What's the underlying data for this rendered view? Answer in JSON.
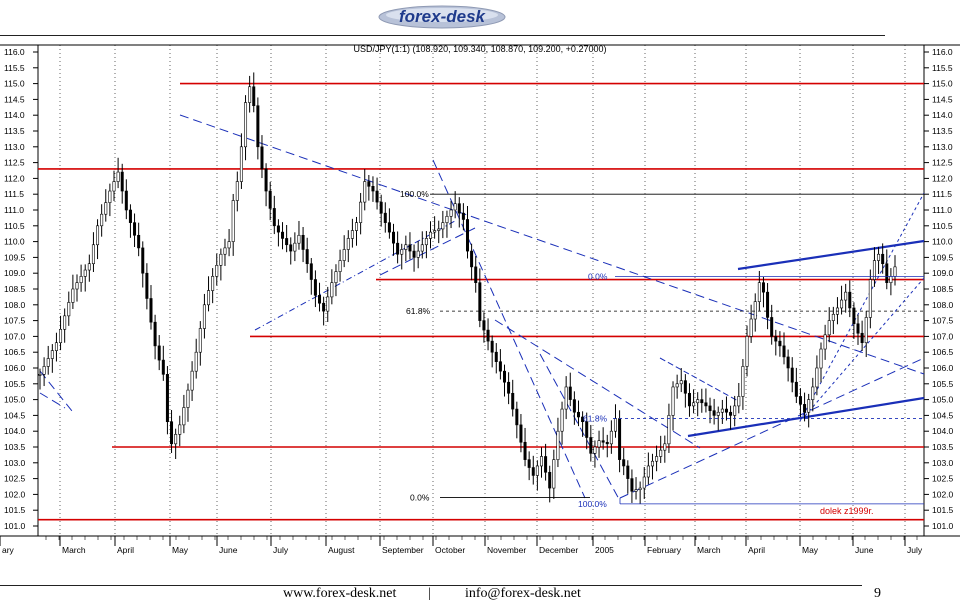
{
  "header": {
    "logo_text": "forex-desk"
  },
  "footer": {
    "website": "www.forex-desk.net",
    "separator": "|",
    "email": "info@forex-desk.net",
    "page_number": "9"
  },
  "chart_data": {
    "type": "candlestick",
    "title": "USD/JPY(1:1) (108.920, 109.340, 108.870, 109.200, +0.27000)",
    "xlabel": "",
    "ylabel": "",
    "ylim": [
      100.6,
      116.2
    ],
    "y_ticks": [
      "116.0",
      "115.5",
      "115.0",
      "114.5",
      "114.0",
      "113.5",
      "113.0",
      "112.5",
      "112.0",
      "111.5",
      "111.0",
      "110.5",
      "110.0",
      "109.5",
      "109.0",
      "108.5",
      "108.0",
      "107.5",
      "107.0",
      "106.5",
      "106.0",
      "105.5",
      "105.0",
      "104.5",
      "104.0",
      "103.5",
      "103.0",
      "102.5",
      "102.0",
      "101.5",
      "101.0"
    ],
    "x_ticks": [
      "ary",
      "March",
      "April",
      "May",
      "June",
      "July",
      "August",
      "September",
      "October",
      "November",
      "December",
      "2005",
      "February",
      "March",
      "April",
      "May",
      "June",
      "July"
    ],
    "grid": true,
    "colors": {
      "horizontal_level": "#d40000",
      "trendline": "#1a2fb8",
      "fib": "#000000",
      "price": "#000000"
    },
    "horizontal_levels": [
      115.0,
      112.3,
      108.8,
      107.0,
      103.5,
      101.2
    ],
    "fibonacci": [
      {
        "label": "100.0%",
        "value": 111.5
      },
      {
        "label": "61.8%",
        "value": 107.8
      },
      {
        "label": "0.0%",
        "value": 101.9
      },
      {
        "label": "0.0%",
        "value": 108.9
      },
      {
        "label": "61.8%",
        "value": 104.4
      },
      {
        "label": "100.0%",
        "value": 101.7
      }
    ],
    "annotations": [
      "dolek z1999r."
    ],
    "close_path": [
      [
        0,
        105.8
      ],
      [
        4,
        106.8
      ],
      [
        8,
        108.5
      ],
      [
        12,
        109.3
      ],
      [
        14,
        110.5
      ],
      [
        17,
        111.6
      ],
      [
        19,
        112.2
      ],
      [
        21,
        111.0
      ],
      [
        24,
        109.8
      ],
      [
        26,
        108.2
      ],
      [
        28,
        106.7
      ],
      [
        30,
        105.8
      ],
      [
        31,
        104.3
      ],
      [
        32,
        103.6
      ],
      [
        34,
        104.2
      ],
      [
        36,
        105.3
      ],
      [
        38,
        106.5
      ],
      [
        40,
        108.0
      ],
      [
        42,
        108.9
      ],
      [
        44,
        109.6
      ],
      [
        46,
        110.0
      ],
      [
        47,
        111.3
      ],
      [
        48,
        111.9
      ],
      [
        49,
        113.0
      ],
      [
        50,
        114.4
      ],
      [
        51,
        114.9
      ],
      [
        52,
        114.3
      ],
      [
        53,
        113.0
      ],
      [
        55,
        111.6
      ],
      [
        57,
        110.5
      ],
      [
        59,
        110.1
      ],
      [
        61,
        109.7
      ],
      [
        63,
        110.2
      ],
      [
        65,
        109.3
      ],
      [
        67,
        108.3
      ],
      [
        69,
        107.8
      ],
      [
        71,
        108.7
      ],
      [
        73,
        109.4
      ],
      [
        75,
        110.1
      ],
      [
        77,
        110.6
      ],
      [
        79,
        111.9
      ],
      [
        81,
        111.6
      ],
      [
        83,
        110.9
      ],
      [
        85,
        110.3
      ],
      [
        87,
        109.6
      ],
      [
        89,
        109.9
      ],
      [
        91,
        109.5
      ],
      [
        93,
        109.9
      ],
      [
        95,
        110.3
      ],
      [
        97,
        110.4
      ],
      [
        99,
        110.8
      ],
      [
        101,
        111.2
      ],
      [
        102,
        110.9
      ],
      [
        103,
        110.7
      ],
      [
        104,
        109.7
      ],
      [
        106,
        108.7
      ],
      [
        107,
        107.5
      ],
      [
        108,
        107.2
      ],
      [
        110,
        106.5
      ],
      [
        112,
        105.9
      ],
      [
        114,
        105.2
      ],
      [
        116,
        104.2
      ],
      [
        118,
        103.1
      ],
      [
        120,
        102.6
      ],
      [
        122,
        103.2
      ],
      [
        124,
        102.2
      ],
      [
        126,
        104.0
      ],
      [
        128,
        105.4
      ],
      [
        130,
        104.6
      ],
      [
        132,
        104.3
      ],
      [
        134,
        103.3
      ],
      [
        136,
        103.7
      ],
      [
        138,
        103.6
      ],
      [
        140,
        104.4
      ],
      [
        141,
        103.1
      ],
      [
        142,
        102.9
      ],
      [
        144,
        102.1
      ],
      [
        146,
        102.2
      ],
      [
        148,
        102.9
      ],
      [
        150,
        103.2
      ],
      [
        152,
        103.6
      ],
      [
        154,
        105.4
      ],
      [
        156,
        105.6
      ],
      [
        158,
        104.8
      ],
      [
        160,
        105.0
      ],
      [
        162,
        104.8
      ],
      [
        164,
        104.5
      ],
      [
        166,
        104.7
      ],
      [
        168,
        104.5
      ],
      [
        170,
        105.1
      ],
      [
        172,
        107.0
      ],
      [
        174,
        108.1
      ],
      [
        175,
        108.7
      ],
      [
        176,
        108.4
      ],
      [
        177,
        107.6
      ],
      [
        178,
        107.0
      ],
      [
        180,
        106.7
      ],
      [
        182,
        106.0
      ],
      [
        184,
        105.1
      ],
      [
        186,
        104.6
      ],
      [
        188,
        105.4
      ],
      [
        190,
        106.6
      ],
      [
        192,
        107.5
      ],
      [
        194,
        107.9
      ],
      [
        196,
        108.4
      ],
      [
        198,
        107.4
      ],
      [
        200,
        106.8
      ],
      [
        201,
        107.6
      ],
      [
        202,
        108.8
      ],
      [
        203,
        109.4
      ],
      [
        204,
        109.6
      ],
      [
        205,
        109.3
      ],
      [
        206,
        108.7
      ],
      [
        207,
        108.9
      ],
      [
        208,
        109.2
      ]
    ]
  }
}
